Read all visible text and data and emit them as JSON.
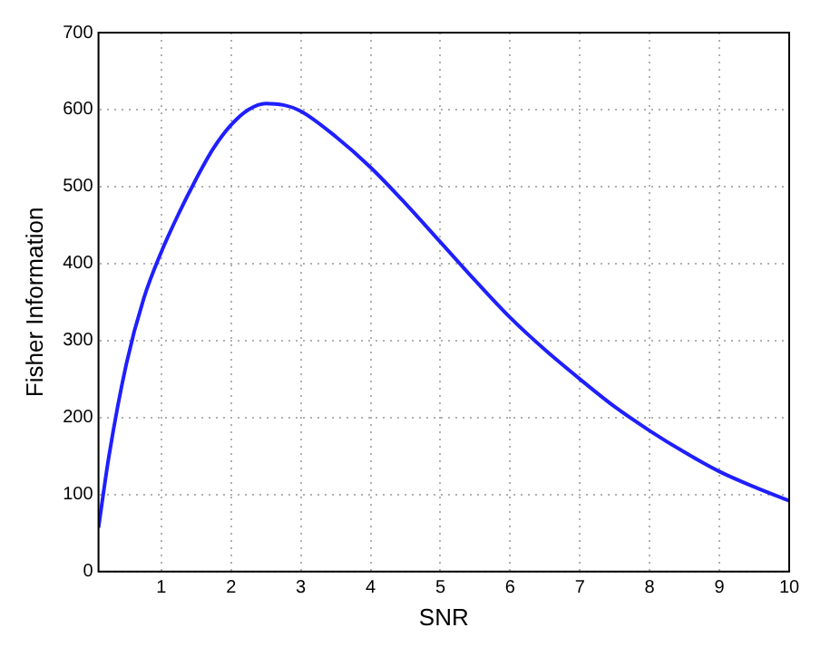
{
  "chart_data": {
    "type": "line",
    "xlabel": "SNR",
    "ylabel": "Fisher Information",
    "x": [
      0.1,
      0.25,
      0.5,
      0.75,
      1,
      1.25,
      1.5,
      1.75,
      2,
      2.25,
      2.5,
      2.75,
      3,
      3.5,
      4,
      4.5,
      5,
      5.5,
      6,
      6.5,
      7,
      7.5,
      8,
      8.5,
      9,
      9.5,
      10
    ],
    "series": [
      {
        "color": "#1f1fff",
        "values": [
          57,
          150,
          270,
          355,
          415,
          465,
          510,
          550,
          580,
          600,
          608,
          606,
          598,
          565,
          525,
          478,
          428,
          378,
          330,
          288,
          250,
          214,
          183,
          155,
          130,
          110,
          92
        ]
      }
    ],
    "xlim": [
      0.1,
      10
    ],
    "xticks": [
      1,
      2,
      3,
      4,
      5,
      6,
      7,
      8,
      9,
      10
    ],
    "ylim": [
      0,
      700
    ],
    "yticks": [
      0,
      100,
      200,
      300,
      400,
      500,
      600,
      700
    ],
    "grid": true,
    "legend": false,
    "marker": "none",
    "line_style": "solid"
  }
}
